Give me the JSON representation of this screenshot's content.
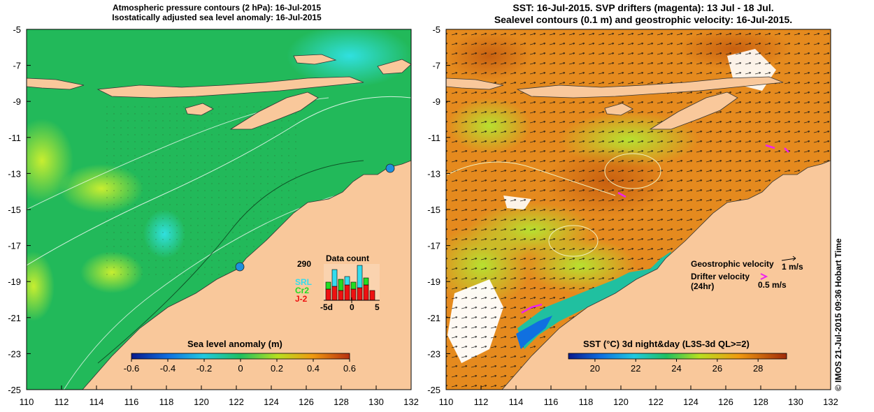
{
  "left_panel": {
    "title_line1": "Atmospheric pressure contours (2 hPa): 16-Jul-2015",
    "title_line2": "Isostatically adjusted sea level anomaly: 16-Jul-2015",
    "colorbar_title": "Sea level anomaly (m)",
    "colorbar_ticks": [
      "-0.6",
      "-0.4",
      "-0.2",
      "0",
      "0.2",
      "0.4",
      "0.6"
    ],
    "inset": {
      "title": "Data count",
      "max_label": "290",
      "series_labels": [
        "SRL",
        "Cr2",
        "J-2"
      ],
      "series_colors": [
        "#33ddee",
        "#22dd22",
        "#ee1111"
      ],
      "x_ticks": [
        "-5d",
        "0",
        "5"
      ]
    }
  },
  "right_panel": {
    "title_line1": "SST: 16-Jul-2015. SVP drifters (magenta): 13 Jul - 18 Jul.",
    "title_line2": "Sealevel contours (0.1 m) and geostrophic velocity: 16-Jul-2015.",
    "colorbar_title": "SST (°C) 3d night&day (L3S-3d QL>=2)",
    "colorbar_ticks": [
      "20",
      "22",
      "24",
      "26",
      "28"
    ],
    "velocity_legend": {
      "geostrophic_label": "Geostrophic velocity",
      "geostrophic_scale": "1 m/s",
      "drifter_label_line1": "Drifter velocity",
      "drifter_label_line2": "(24hr)",
      "drifter_scale": "0.5 m/s"
    }
  },
  "axes": {
    "y_ticks": [
      "-5",
      "-7",
      "-9",
      "-11",
      "-13",
      "-15",
      "-17",
      "-19",
      "-21",
      "-23",
      "-25"
    ],
    "x_ticks": [
      "110",
      "112",
      "114",
      "116",
      "118",
      "120",
      "122",
      "124",
      "126",
      "128",
      "130",
      "132"
    ]
  },
  "colors": {
    "land": "#f9c89b",
    "ocean_left": "#22bb55",
    "ocean_right": "#e88a1c",
    "drifter": "#ee22ee"
  },
  "copyright": "© IMOS 21-Jul-2015 09:36 Hobart Time"
}
